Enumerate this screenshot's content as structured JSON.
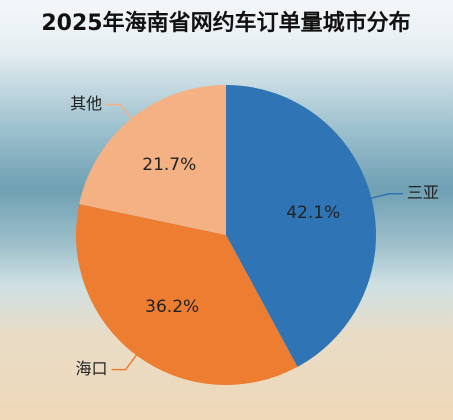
{
  "chart_data": {
    "type": "pie",
    "title": "2025年海南省网约车订单量城市分布",
    "categories": [
      "三亚",
      "海口",
      "其他"
    ],
    "values": [
      42.1,
      36.2,
      21.7
    ],
    "value_labels": [
      "42.1%",
      "36.2%",
      "21.7%"
    ],
    "colors": [
      "#2f74b5",
      "#ed7d31",
      "#f4b183"
    ]
  }
}
